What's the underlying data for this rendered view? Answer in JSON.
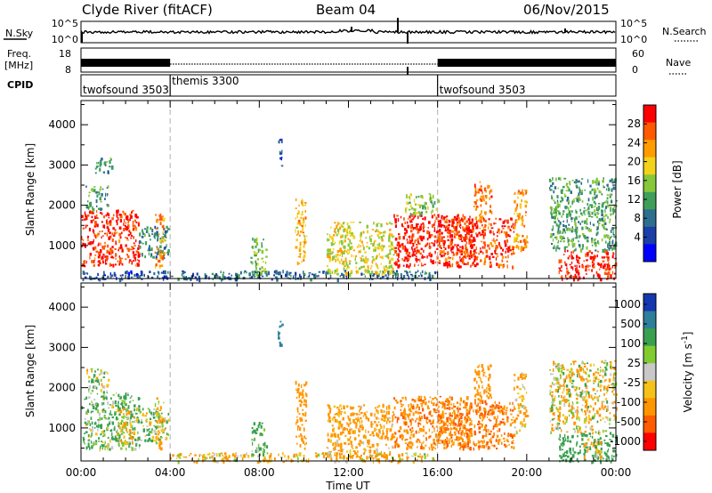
{
  "header": {
    "station": "Clyde River (fitACF)",
    "beam": "Beam 04",
    "date": "06/Nov/2015"
  },
  "noise_panel": {
    "left_label": "N.Sky",
    "left_ticks": [
      "10^5",
      "10^0"
    ],
    "right_ticks": [
      "10^5",
      "10^0"
    ],
    "right_label": "N.Search",
    "right_label_style": "dotted"
  },
  "freq_panel": {
    "left_label_1": "Freq.",
    "left_label_2": "[MHz]",
    "left_ticks": [
      "18",
      "8"
    ],
    "right_ticks": [
      "60",
      "0"
    ],
    "right_label": "Nave",
    "right_label_style": "dotted"
  },
  "cpid_panel": {
    "label": "CPID",
    "modes": [
      {
        "name": "twofsound 3503",
        "start_h": 0,
        "end_h": 4
      },
      {
        "name": "themis 3300",
        "start_h": 4,
        "end_h": 16
      },
      {
        "name": "twofsound 3503",
        "start_h": 16,
        "end_h": 24
      }
    ]
  },
  "colors": {
    "power_scale": [
      "#0000ff",
      "#1a3fa8",
      "#2e6e8e",
      "#3f9f5a",
      "#86c83a",
      "#f2d21b",
      "#ff9c00",
      "#ff5a00",
      "#ff0000"
    ],
    "velocity_scale": [
      "#1538b0",
      "#2e7f9a",
      "#39a050",
      "#80cc30",
      "#c8c8c8",
      "#f4c21a",
      "#ff9500",
      "#ff5b00",
      "#ff0000"
    ]
  },
  "chart_data": [
    {
      "type": "heatmap",
      "name": "power",
      "xlabel": "",
      "ylabel": "Slant Range [km]",
      "xlim": [
        0,
        24
      ],
      "ylim": [
        180,
        4600
      ],
      "yticks": [
        1000,
        2000,
        3000,
        4000
      ],
      "colorbar": {
        "label": "Power [dB]",
        "ticks": [
          "28",
          "24",
          "20",
          "16",
          "12",
          "8",
          "4"
        ],
        "range": [
          0,
          30
        ]
      },
      "cells": [
        {
          "t": [
            0.0,
            2.6
          ],
          "r": [
            500,
            1900
          ],
          "v": 27
        },
        {
          "t": [
            0.2,
            1.2
          ],
          "r": [
            1900,
            2500
          ],
          "v": 12
        },
        {
          "t": [
            0.6,
            1.4
          ],
          "r": [
            2800,
            3200
          ],
          "v": 10
        },
        {
          "t": [
            2.6,
            3.9
          ],
          "r": [
            700,
            1500
          ],
          "v": 10
        },
        {
          "t": [
            3.3,
            3.7
          ],
          "r": [
            500,
            1800
          ],
          "v": 22
        },
        {
          "t": [
            0.0,
            4.0
          ],
          "r": [
            180,
            400
          ],
          "v": 6
        },
        {
          "t": [
            4.0,
            15.9
          ],
          "r": [
            180,
            400
          ],
          "v": 8
        },
        {
          "t": [
            7.6,
            8.3
          ],
          "r": [
            300,
            1200
          ],
          "v": 14
        },
        {
          "t": [
            8.8,
            9.0
          ],
          "r": [
            3000,
            3700
          ],
          "v": 6
        },
        {
          "t": [
            9.6,
            10.1
          ],
          "r": [
            500,
            2200
          ],
          "v": 20
        },
        {
          "t": [
            11.0,
            14.0
          ],
          "r": [
            300,
            1600
          ],
          "v": 18
        },
        {
          "t": [
            14.0,
            17.5
          ],
          "r": [
            500,
            1800
          ],
          "v": 28
        },
        {
          "t": [
            14.5,
            16.0
          ],
          "r": [
            1800,
            2300
          ],
          "v": 14
        },
        {
          "t": [
            16.0,
            19.4
          ],
          "r": [
            500,
            1700
          ],
          "v": 26
        },
        {
          "t": [
            17.6,
            18.4
          ],
          "r": [
            1700,
            2600
          ],
          "v": 24
        },
        {
          "t": [
            19.4,
            20.0
          ],
          "r": [
            900,
            2400
          ],
          "v": 22
        },
        {
          "t": [
            21.4,
            24.0
          ],
          "r": [
            180,
            900
          ],
          "v": 28
        },
        {
          "t": [
            21.0,
            24.0
          ],
          "r": [
            900,
            2700
          ],
          "v": 12
        }
      ]
    },
    {
      "type": "heatmap",
      "name": "velocity",
      "xlabel": "Time UT",
      "ylabel": "Slant Range [km]",
      "xlim": [
        0,
        24
      ],
      "ylim": [
        180,
        4600
      ],
      "xticks": [
        "00:00",
        "04:00",
        "08:00",
        "12:00",
        "16:00",
        "20:00",
        "00:00"
      ],
      "yticks": [
        1000,
        2000,
        3000,
        4000
      ],
      "colorbar": {
        "label": "Velocity [m s^-1]",
        "ticks": [
          "1000",
          "500",
          "100",
          "25",
          "-25",
          "-100",
          "-500",
          "-1000"
        ],
        "range": [
          -1000,
          1000
        ]
      },
      "cells": [
        {
          "t": [
            0.0,
            2.6
          ],
          "r": [
            500,
            1900
          ],
          "v": 150
        },
        {
          "t": [
            1.6,
            2.4
          ],
          "r": [
            600,
            1500
          ],
          "v": -80
        },
        {
          "t": [
            0.2,
            1.2
          ],
          "r": [
            1900,
            2500
          ],
          "v": 10
        },
        {
          "t": [
            2.6,
            3.9
          ],
          "r": [
            700,
            1500
          ],
          "v": 60
        },
        {
          "t": [
            3.3,
            3.7
          ],
          "r": [
            500,
            1800
          ],
          "v": -120
        },
        {
          "t": [
            4.0,
            15.9
          ],
          "r": [
            180,
            400
          ],
          "v": -90
        },
        {
          "t": [
            7.6,
            8.3
          ],
          "r": [
            300,
            1200
          ],
          "v": 200
        },
        {
          "t": [
            8.8,
            9.0
          ],
          "r": [
            3000,
            3700
          ],
          "v": 700
        },
        {
          "t": [
            9.6,
            10.1
          ],
          "r": [
            500,
            2200
          ],
          "v": -300
        },
        {
          "t": [
            11.0,
            14.0
          ],
          "r": [
            300,
            1600
          ],
          "v": -200
        },
        {
          "t": [
            14.0,
            17.5
          ],
          "r": [
            500,
            1800
          ],
          "v": -400
        },
        {
          "t": [
            16.0,
            19.4
          ],
          "r": [
            500,
            1700
          ],
          "v": -500
        },
        {
          "t": [
            17.6,
            18.4
          ],
          "r": [
            1700,
            2600
          ],
          "v": -300
        },
        {
          "t": [
            19.4,
            20.0
          ],
          "r": [
            900,
            2400
          ],
          "v": -150
        },
        {
          "t": [
            21.4,
            24.0
          ],
          "r": [
            180,
            900
          ],
          "v": 300
        },
        {
          "t": [
            22.5,
            23.3
          ],
          "r": [
            300,
            800
          ],
          "v": -200
        },
        {
          "t": [
            21.0,
            24.0
          ],
          "r": [
            900,
            2700
          ],
          "v": -60
        }
      ]
    }
  ]
}
